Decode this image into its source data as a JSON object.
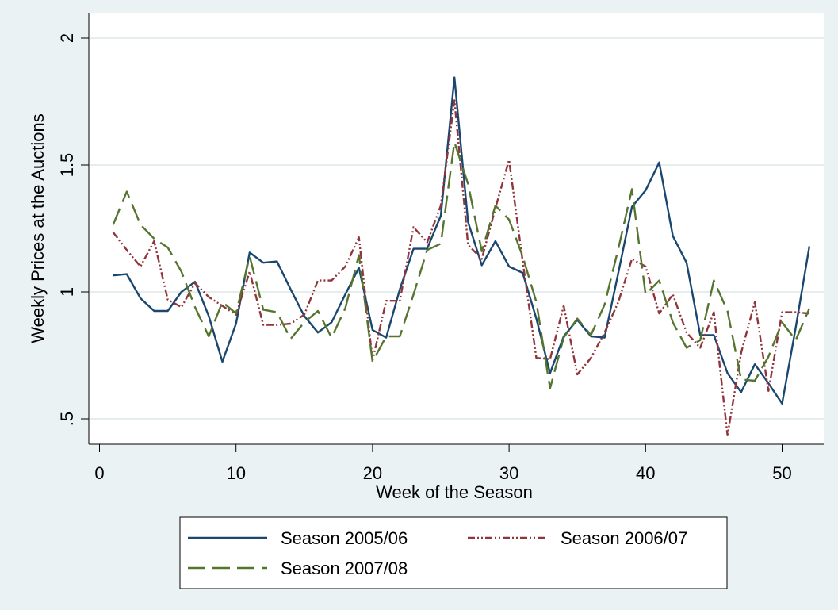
{
  "chart_data": {
    "type": "line",
    "title": "",
    "xlabel": "Week of the Season",
    "ylabel": "Weekly Prices at the Auctions",
    "xlim": [
      0,
      52
    ],
    "ylim": [
      0.5,
      2
    ],
    "xticks": [
      0,
      10,
      20,
      30,
      40,
      50
    ],
    "xtick_labels": [
      "0",
      "10",
      "20",
      "30",
      "40",
      "50"
    ],
    "yticks": [
      0.5,
      1,
      1.5,
      2
    ],
    "ytick_labels": [
      ".5",
      "1",
      "1.5",
      "2"
    ],
    "grid": "horizontal",
    "legend_position": "bottom",
    "x": [
      1,
      2,
      3,
      4,
      5,
      6,
      7,
      8,
      9,
      10,
      11,
      12,
      13,
      14,
      15,
      16,
      17,
      18,
      19,
      20,
      21,
      22,
      23,
      24,
      25,
      26,
      27,
      28,
      29,
      30,
      31,
      32,
      33,
      34,
      35,
      36,
      37,
      38,
      39,
      40,
      41,
      42,
      43,
      44,
      45,
      46,
      47,
      48,
      49,
      50,
      51,
      52
    ],
    "series": [
      {
        "name": "Season 2005/06",
        "color": "#1a476f",
        "style": "solid",
        "values": [
          1.065,
          1.07,
          0.975,
          0.925,
          0.925,
          1.0,
          1.04,
          0.905,
          0.725,
          0.875,
          1.155,
          1.115,
          1.12,
          1.01,
          0.905,
          0.84,
          0.88,
          0.99,
          1.095,
          0.85,
          0.82,
          1.01,
          1.17,
          1.17,
          1.3,
          1.845,
          1.275,
          1.105,
          1.2,
          1.1,
          1.075,
          0.895,
          0.68,
          0.825,
          0.89,
          0.825,
          0.82,
          1.075,
          1.335,
          1.4,
          1.51,
          1.22,
          1.115,
          0.83,
          0.83,
          0.68,
          0.605,
          0.715,
          0.64,
          0.56,
          0.86,
          1.18
        ]
      },
      {
        "name": "Season 2006/07",
        "color": "#90353b",
        "style": "dash-dot",
        "values": [
          1.235,
          1.165,
          1.1,
          1.2,
          0.97,
          0.94,
          1.035,
          0.98,
          0.945,
          0.91,
          1.08,
          0.87,
          0.87,
          0.875,
          0.91,
          1.045,
          1.045,
          1.1,
          1.215,
          0.73,
          0.965,
          0.965,
          1.255,
          1.195,
          1.34,
          1.755,
          1.185,
          1.13,
          1.33,
          1.52,
          1.12,
          0.74,
          0.735,
          0.945,
          0.675,
          0.74,
          0.84,
          0.96,
          1.13,
          1.1,
          0.915,
          0.99,
          0.84,
          0.78,
          0.92,
          0.435,
          0.76,
          0.96,
          0.61,
          0.92,
          0.92,
          0.915
        ]
      },
      {
        "name": "Season 2007/08",
        "color": "#55752f",
        "style": "long-dash",
        "values": [
          1.265,
          1.395,
          1.265,
          1.21,
          1.175,
          1.08,
          0.94,
          0.825,
          0.96,
          0.915,
          1.14,
          0.93,
          0.92,
          0.815,
          0.88,
          0.925,
          0.82,
          0.935,
          1.145,
          0.725,
          0.825,
          0.825,
          0.99,
          1.165,
          1.19,
          1.59,
          1.425,
          1.16,
          1.34,
          1.285,
          1.14,
          0.96,
          0.62,
          0.82,
          0.895,
          0.83,
          0.95,
          1.17,
          1.405,
          0.99,
          1.045,
          0.88,
          0.78,
          0.81,
          1.045,
          0.925,
          0.655,
          0.65,
          0.745,
          0.88,
          0.81,
          0.935
        ]
      }
    ]
  }
}
